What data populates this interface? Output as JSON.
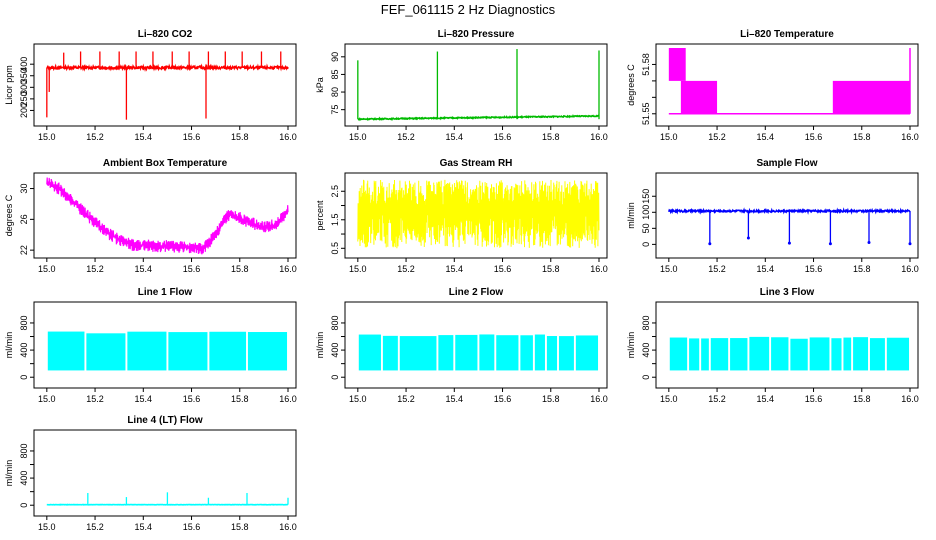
{
  "page_title": "FEF_061115  2 Hz Diagnostics",
  "chart_data": [
    {
      "id": "co2",
      "type": "line",
      "title": "Li–820 CO2",
      "ylabel": "Licor ppm",
      "color": "#ff0000",
      "xlim": [
        14.98,
        16.0
      ],
      "ylim": [
        150,
        470
      ],
      "xticks": [
        "15.0",
        "15.2",
        "15.4",
        "15.6",
        "15.8",
        "16.0"
      ],
      "yticks": [
        200,
        250,
        300,
        350,
        400
      ],
      "ytick_labels": [
        "200",
        "250",
        "300",
        "350",
        "400"
      ],
      "baseline": 385,
      "noise": 6,
      "clip_top": 460,
      "spikes": [
        {
          "x": 15.0,
          "y": 170
        },
        {
          "x": 15.01,
          "y": 280
        },
        {
          "x": 15.33,
          "y": 160
        },
        {
          "x": 15.66,
          "y": 165
        },
        {
          "x": 15.07,
          "y": 450
        },
        {
          "x": 15.14,
          "y": 455
        },
        {
          "x": 15.22,
          "y": 455
        },
        {
          "x": 15.3,
          "y": 455
        },
        {
          "x": 15.37,
          "y": 455
        },
        {
          "x": 15.44,
          "y": 455
        },
        {
          "x": 15.52,
          "y": 455
        },
        {
          "x": 15.59,
          "y": 455
        },
        {
          "x": 15.67,
          "y": 455
        },
        {
          "x": 15.74,
          "y": 455
        },
        {
          "x": 15.81,
          "y": 455
        },
        {
          "x": 15.89,
          "y": 455
        },
        {
          "x": 15.97,
          "y": 455
        }
      ]
    },
    {
      "id": "pressure",
      "type": "line",
      "title": "Li–820 Pressure",
      "ylabel": "kPa",
      "color": "#00bb00",
      "xlim": [
        14.98,
        16.0
      ],
      "ylim": [
        71.5,
        92.5
      ],
      "xticks": [
        "15.0",
        "15.2",
        "15.4",
        "15.6",
        "15.8",
        "16.0"
      ],
      "yticks": [
        75,
        80,
        85,
        90
      ],
      "ytick_labels": [
        "75",
        "80",
        "85",
        "90"
      ],
      "baseline_start": 72.3,
      "baseline_end": 73.2,
      "noise": 0.15,
      "spikes": [
        {
          "x": 15.0,
          "y": 89
        },
        {
          "x": 15.33,
          "y": 91.5
        },
        {
          "x": 15.66,
          "y": 92.2
        },
        {
          "x": 16.0,
          "y": 91.8
        }
      ]
    },
    {
      "id": "temperature",
      "type": "step",
      "title": "Li–820 Temperature",
      "ylabel": "degrees C",
      "color": "#ff00ff",
      "xlim": [
        14.98,
        16.0
      ],
      "ylim": [
        51.545,
        51.59
      ],
      "xticks": [
        "15.0",
        "15.2",
        "15.4",
        "15.6",
        "15.8",
        "16.0"
      ],
      "yticks": [
        51.55,
        51.56,
        51.57,
        51.58
      ],
      "ytick_labels": [
        "51.55",
        "",
        "",
        "51.58"
      ],
      "band_segments": [
        {
          "x0": 15.0,
          "x1": 15.07,
          "y0": 51.57,
          "y1": 51.59
        },
        {
          "x0": 15.05,
          "x1": 15.2,
          "y0": 51.55,
          "y1": 51.57
        },
        {
          "x0": 15.68,
          "x1": 16.0,
          "y0": 51.55,
          "y1": 51.57
        }
      ],
      "flat_line": 51.55
    },
    {
      "id": "ambient",
      "type": "line",
      "title": "Ambient Box Temperature",
      "ylabel": "degrees C",
      "color": "#ff00ff",
      "xlim": [
        14.98,
        16.0
      ],
      "ylim": [
        21.5,
        31.5
      ],
      "xticks": [
        "15.0",
        "15.2",
        "15.4",
        "15.6",
        "15.8",
        "16.0"
      ],
      "yticks": [
        22,
        26,
        30
      ],
      "ytick_labels": [
        "22",
        "26",
        "30"
      ],
      "x": [
        15.0,
        15.05,
        15.1,
        15.15,
        15.2,
        15.25,
        15.3,
        15.35,
        15.4,
        15.5,
        15.6,
        15.65,
        15.7,
        15.75,
        15.8,
        15.85,
        15.9,
        15.95,
        16.0
      ],
      "values": [
        30.8,
        30.0,
        28.6,
        27.0,
        25.6,
        24.3,
        23.3,
        22.7,
        22.6,
        22.5,
        22.4,
        22.2,
        24.0,
        26.6,
        26.2,
        25.5,
        25.0,
        25.3,
        27.2
      ],
      "noise": 0.8
    },
    {
      "id": "rh",
      "type": "noise",
      "title": "Gas Stream RH",
      "ylabel": "percent",
      "color": "#ffff00",
      "xlim": [
        14.98,
        16.0
      ],
      "ylim": [
        0.3,
        3.0
      ],
      "xticks": [
        "15.0",
        "15.2",
        "15.4",
        "15.6",
        "15.8",
        "16.0"
      ],
      "yticks": [
        0.5,
        1.0,
        1.5,
        2.0,
        2.5
      ],
      "ytick_labels": [
        "0.5",
        "1.5",
        "2.5"
      ],
      "ytick_label_values": [
        0.5,
        1.5,
        2.5
      ],
      "band_min": 0.5,
      "band_max": 2.9
    },
    {
      "id": "sample",
      "type": "line",
      "title": "Sample Flow",
      "ylabel": "ml/min",
      "color": "#0000ff",
      "xlim": [
        14.98,
        16.0
      ],
      "ylim": [
        -30,
        210
      ],
      "xticks": [
        "15.0",
        "15.2",
        "15.4",
        "15.6",
        "15.8",
        "16.0"
      ],
      "yticks": [
        0,
        50,
        100,
        150
      ],
      "ytick_labels": [
        "0",
        "50",
        "100",
        "150"
      ],
      "baseline": 104,
      "noise": 3,
      "dips": [
        {
          "x": 15.17,
          "y": 2
        },
        {
          "x": 15.33,
          "y": 20
        },
        {
          "x": 15.5,
          "y": 4
        },
        {
          "x": 15.67,
          "y": 2
        },
        {
          "x": 15.83,
          "y": 6
        },
        {
          "x": 16.0,
          "y": 2
        }
      ]
    },
    {
      "id": "line1",
      "type": "flow",
      "title": "Line 1 Flow",
      "ylabel": "ml/min",
      "color": "#00ffff",
      "xlim": [
        14.98,
        16.0
      ],
      "ylim": [
        -100,
        1050
      ],
      "xticks": [
        "15.0",
        "15.2",
        "15.4",
        "15.6",
        "15.8",
        "16.0"
      ],
      "yticks": [
        0,
        200,
        400,
        600,
        800
      ],
      "ytick_labels": [
        "0",
        "400",
        "800"
      ],
      "ytick_label_values": [
        0,
        400,
        800
      ],
      "low": 100,
      "high": 660,
      "gaps": [
        15.16,
        15.33,
        15.5,
        15.67,
        15.83
      ]
    },
    {
      "id": "line2",
      "type": "flow",
      "title": "Line 2 Flow",
      "ylabel": "ml/min",
      "color": "#00ffff",
      "xlim": [
        14.98,
        16.0
      ],
      "ylim": [
        -100,
        1050
      ],
      "xticks": [
        "15.0",
        "15.2",
        "15.4",
        "15.6",
        "15.8",
        "16.0"
      ],
      "yticks": [
        0,
        200,
        400,
        600,
        800
      ],
      "ytick_labels": [
        "0",
        "400",
        "800"
      ],
      "ytick_label_values": [
        0,
        400,
        800
      ],
      "low": 100,
      "high": 620,
      "gaps": [
        15.17,
        15.1,
        15.33,
        15.4,
        15.5,
        15.57,
        15.67,
        15.73,
        15.78,
        15.83,
        15.9
      ]
    },
    {
      "id": "line3",
      "type": "flow",
      "title": "Line 3 Flow",
      "ylabel": "ml/min",
      "color": "#00ffff",
      "xlim": [
        14.98,
        16.0
      ],
      "ylim": [
        -100,
        1050
      ],
      "xticks": [
        "15.0",
        "15.2",
        "15.4",
        "15.6",
        "15.8",
        "16.0"
      ],
      "yticks": [
        0,
        200,
        400,
        600,
        800
      ],
      "ytick_labels": [
        "0",
        "400",
        "800"
      ],
      "ytick_label_values": [
        0,
        400,
        800
      ],
      "low": 100,
      "high": 580,
      "gaps": [
        15.08,
        15.13,
        15.17,
        15.25,
        15.33,
        15.42,
        15.5,
        15.58,
        15.67,
        15.72,
        15.76,
        15.83,
        15.9
      ]
    },
    {
      "id": "line4",
      "type": "line",
      "title": "Line 4 (LT) Flow",
      "ylabel": "ml/min",
      "color": "#00ffff",
      "xlim": [
        14.98,
        16.0
      ],
      "ylim": [
        -100,
        1050
      ],
      "xticks": [
        "15.0",
        "15.2",
        "15.4",
        "15.6",
        "15.8",
        "16.0"
      ],
      "yticks": [
        0,
        200,
        400,
        600,
        800
      ],
      "ytick_labels": [
        "0",
        "400",
        "800"
      ],
      "ytick_label_values": [
        0,
        400,
        800
      ],
      "baseline": 8,
      "noise": 2,
      "spikes": [
        {
          "x": 15.17,
          "y": 180
        },
        {
          "x": 15.33,
          "y": 120
        },
        {
          "x": 15.5,
          "y": 190
        },
        {
          "x": 15.67,
          "y": 110
        },
        {
          "x": 15.83,
          "y": 180
        },
        {
          "x": 16.0,
          "y": 110
        }
      ]
    }
  ]
}
